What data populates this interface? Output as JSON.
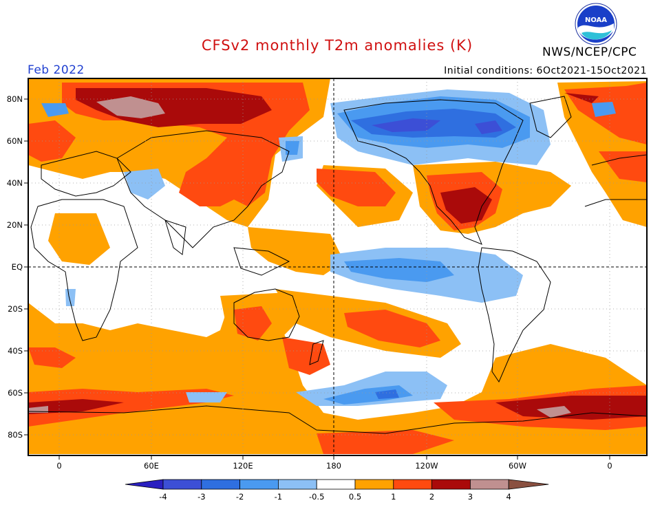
{
  "header": {
    "title": "CFSv2 monthly T2m anomalies (K)",
    "agency": "NWS/NCEP/CPC",
    "month": "Feb 2022",
    "initial_conditions": "Initial conditions:  6Oct2021-15Oct2021",
    "logo_text": "NOAA"
  },
  "map": {
    "lon_ticks": [
      "0",
      "60E",
      "120E",
      "180",
      "120W",
      "60W",
      "0"
    ],
    "lat_ticks": [
      "80N",
      "60N",
      "40N",
      "20N",
      "EQ",
      "20S",
      "40S",
      "60S",
      "80S"
    ]
  },
  "colorbar": {
    "tick_labels": [
      "-4",
      "-3",
      "-2",
      "-1",
      "-0.5",
      "0.5",
      "1",
      "2",
      "3",
      "4"
    ],
    "colors": [
      "#2a1fc0",
      "#3c4fd6",
      "#2f6fe0",
      "#4a9af0",
      "#8cc0f5",
      "#ffffff",
      "#ffa200",
      "#ff4a10",
      "#aa0a0a",
      "#c09090",
      "#8a5040"
    ]
  }
}
